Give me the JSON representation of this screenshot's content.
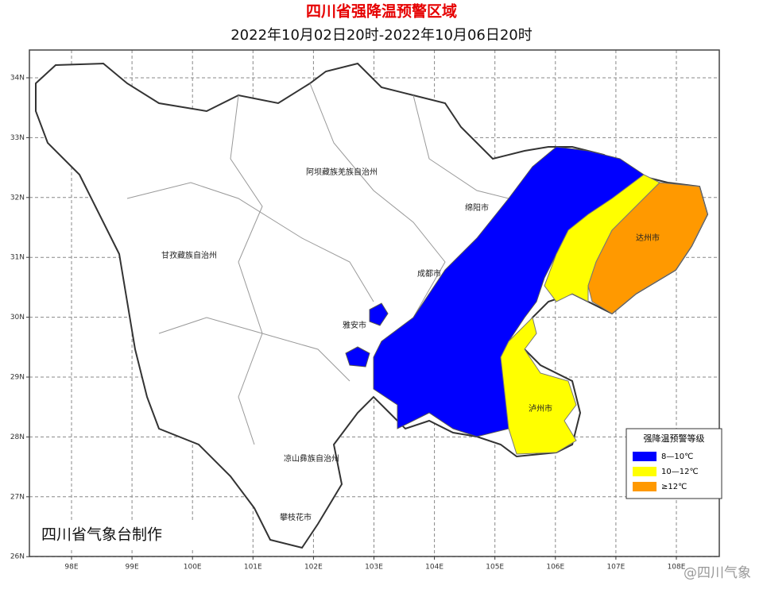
{
  "title": "四川省强降温预警区域",
  "subtitle": "2022年10月02日20时-2022年10月06日20时",
  "lon_ticks": [
    {
      "value": 98,
      "label": "98E"
    },
    {
      "value": 99,
      "label": "99E"
    },
    {
      "value": 100,
      "label": "100E"
    },
    {
      "value": 101,
      "label": "101E"
    },
    {
      "value": 102,
      "label": "102E"
    },
    {
      "value": 103,
      "label": "103E"
    },
    {
      "value": 104,
      "label": "104E"
    },
    {
      "value": 105,
      "label": "105E"
    },
    {
      "value": 106,
      "label": "106E"
    },
    {
      "value": 107,
      "label": "107E"
    },
    {
      "value": 108,
      "label": "108E"
    }
  ],
  "lat_ticks": [
    {
      "value": 34,
      "label": "34N"
    },
    {
      "value": 33,
      "label": "33N"
    },
    {
      "value": 32,
      "label": "32N"
    },
    {
      "value": 31,
      "label": "31N"
    },
    {
      "value": 30,
      "label": "30N"
    },
    {
      "value": 29,
      "label": "29N"
    },
    {
      "value": 28,
      "label": "28N"
    },
    {
      "value": 27,
      "label": "27N"
    },
    {
      "value": 26,
      "label": "26N"
    }
  ],
  "places": [
    "阿坝藏族羌族自治州",
    "甘孜藏族自治州",
    "绵阳市",
    "成都市",
    "雅安市",
    "达州市",
    "泸州市",
    "凉山彝族自治州",
    "攀枝花市"
  ],
  "legend": {
    "title": "强降温预警等级",
    "items": [
      {
        "label": "8—10℃",
        "color": "#0000ff"
      },
      {
        "label": "10—12℃",
        "color": "#ffff00"
      },
      {
        "label": "≥12℃",
        "color": "#ff9900"
      }
    ]
  },
  "credit": "四川省气象台制作",
  "watermark": "@四川气象"
}
